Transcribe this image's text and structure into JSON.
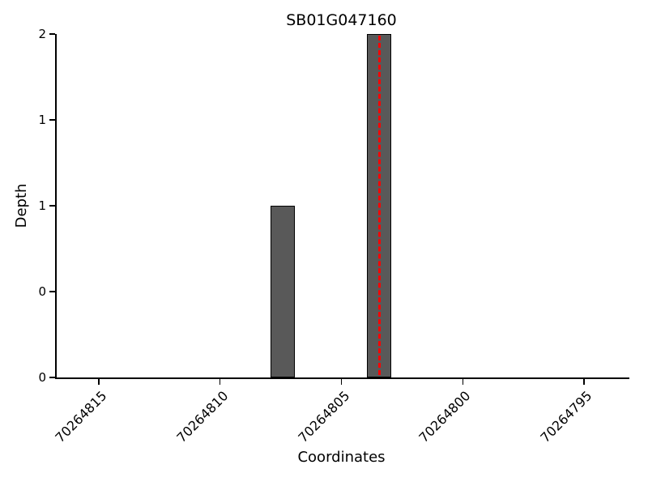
{
  "chart_data": {
    "type": "bar",
    "title": "SB01G047160",
    "xlabel": "Coordinates",
    "ylabel": "Depth",
    "x_axis": {
      "reversed": true,
      "lim": [
        70264816.8,
        70264793.2
      ],
      "ticks": [
        {
          "value": 70264815,
          "label": "70264815"
        },
        {
          "value": 70264810,
          "label": "70264810"
        },
        {
          "value": 70264805,
          "label": "70264805"
        },
        {
          "value": 70264800,
          "label": "70264800"
        },
        {
          "value": 70264795,
          "label": "70264795"
        }
      ]
    },
    "y_axis": {
      "lim": [
        0,
        2
      ],
      "ticks": [
        {
          "value": 0,
          "label": "0"
        },
        {
          "value": 0.5,
          "label": "0"
        },
        {
          "value": 1,
          "label": "1"
        },
        {
          "value": 1.5,
          "label": "1"
        },
        {
          "value": 2,
          "label": "2"
        }
      ]
    },
    "bars": [
      {
        "x": 70264807.5,
        "width": 1,
        "height": 1
      },
      {
        "x": 70264803.5,
        "width": 1,
        "height": 2
      }
    ],
    "bar_color": "#595959",
    "bar_border_color": "#000000",
    "vline": {
      "x": 70264803.5,
      "color": "#ff0000",
      "style": "dashed"
    }
  }
}
